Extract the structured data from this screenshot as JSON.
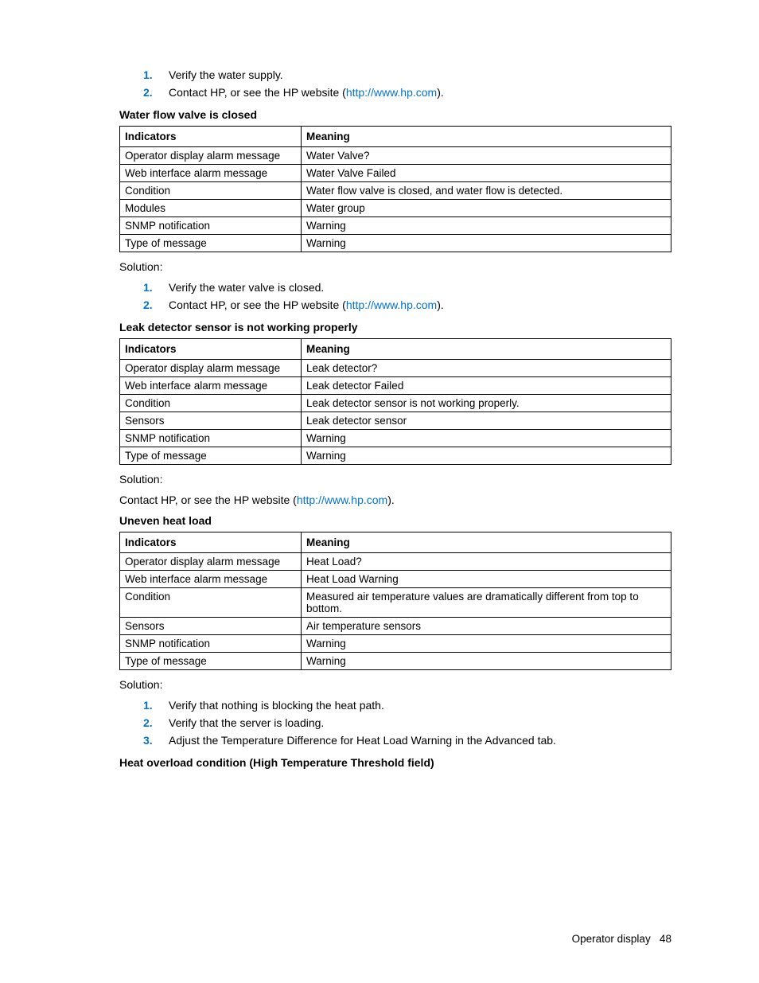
{
  "link_text": "http://www.hp.com",
  "link_color": "#0073cf",
  "list_marker_color": "#0073cf",
  "border_color": "#000000",
  "footer": {
    "label": "Operator display",
    "page": "48"
  },
  "top_list": {
    "items": [
      "Verify the water supply.",
      "Contact HP, or see the HP website ("
    ],
    "suffix_after_link": ")."
  },
  "sections": [
    {
      "heading": "Water flow valve is closed",
      "header": {
        "c1": "Indicators",
        "c2": "Meaning"
      },
      "rows": [
        [
          "Operator display alarm message",
          "Water Valve?"
        ],
        [
          "Web interface alarm message",
          "Water Valve Failed"
        ],
        [
          "Condition",
          "Water flow valve is closed, and water flow is detected."
        ],
        [
          "Modules",
          "Water group"
        ],
        [
          "SNMP notification",
          "Warning"
        ],
        [
          "Type of message",
          "Warning"
        ]
      ],
      "solution_label": "Solution:",
      "solution_type": "list",
      "solution_items": [
        {
          "text": "Verify the water valve is closed.",
          "has_link": false
        },
        {
          "text": "Contact HP, or see the HP website (",
          "has_link": true
        }
      ]
    },
    {
      "heading": "Leak detector sensor is not working properly",
      "header": {
        "c1": "Indicators",
        "c2": "Meaning"
      },
      "rows": [
        [
          "Operator display alarm message",
          "Leak detector?"
        ],
        [
          "Web interface alarm message",
          "Leak detector Failed"
        ],
        [
          "Condition",
          "Leak detector sensor is not working properly."
        ],
        [
          "Sensors",
          "Leak detector sensor"
        ],
        [
          "SNMP notification",
          "Warning"
        ],
        [
          "Type of message",
          "Warning"
        ]
      ],
      "solution_label": "Solution:",
      "solution_type": "paragraph",
      "solution_text_prefix": "Contact HP, or see the HP website ("
    },
    {
      "heading": "Uneven heat load",
      "header": {
        "c1": "Indicators",
        "c2": "Meaning"
      },
      "rows": [
        [
          "Operator display alarm message",
          "Heat Load?"
        ],
        [
          "Web interface alarm message",
          "Heat Load Warning"
        ],
        [
          "Condition",
          "Measured air temperature values are dramatically different from top to bottom."
        ],
        [
          "Sensors",
          "Air temperature sensors"
        ],
        [
          "SNMP notification",
          "Warning"
        ],
        [
          "Type of message",
          "Warning"
        ]
      ],
      "solution_label": "Solution:",
      "solution_type": "list",
      "solution_items": [
        {
          "text": "Verify that nothing is blocking the heat path.",
          "has_link": false
        },
        {
          "text": "Verify that the server is loading.",
          "has_link": false
        },
        {
          "text": "Adjust the Temperature Difference for Heat Load Warning in the Advanced tab.",
          "has_link": false
        }
      ]
    }
  ],
  "final_heading": "Heat overload condition (High Temperature Threshold field)"
}
